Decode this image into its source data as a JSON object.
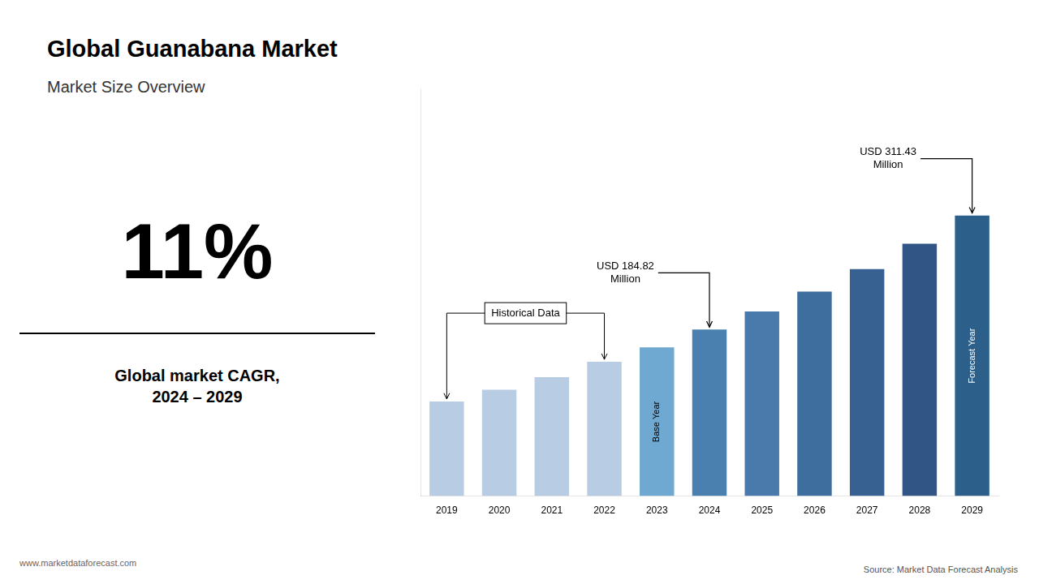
{
  "chart_data": {
    "type": "bar",
    "title": "Global Guanabana Market",
    "subtitle": "Market Size Overview",
    "headline": "11%",
    "headline_label": "Global market CAGR,\n2024 – 2029",
    "website": "www.marketdataforecast.com",
    "source": "Source: Market Data Forecast Analysis",
    "categories": [
      2019,
      2020,
      2021,
      2022,
      2023,
      2024,
      2025,
      2026,
      2027,
      2028,
      2029
    ],
    "values": [
      105,
      118,
      132,
      149,
      165,
      184.82,
      205,
      227,
      252,
      280,
      311.43
    ],
    "colors": [
      "#b8cce4",
      "#b8cce4",
      "#b8cce4",
      "#b8cce4",
      "#6fa8d0",
      "#4a80b0",
      "#4a7aab",
      "#3d6e9e",
      "#376191",
      "#315584",
      "#2c5f8a"
    ],
    "ylim": [
      0,
      451.5735
    ],
    "grid": false,
    "tick_labels": "x",
    "annotations": [
      {
        "text": "USD 184.82\nMillion",
        "x": 2024
      },
      {
        "text": "USD 311.43\nMillion",
        "x": 2029
      },
      {
        "text": "Historical Data",
        "x": [
          2019,
          2022
        ]
      }
    ],
    "bar_texts": [
      {
        "text": "Base Year",
        "x": 2023
      },
      {
        "text": "Forecast Year",
        "x": 2029
      }
    ]
  }
}
